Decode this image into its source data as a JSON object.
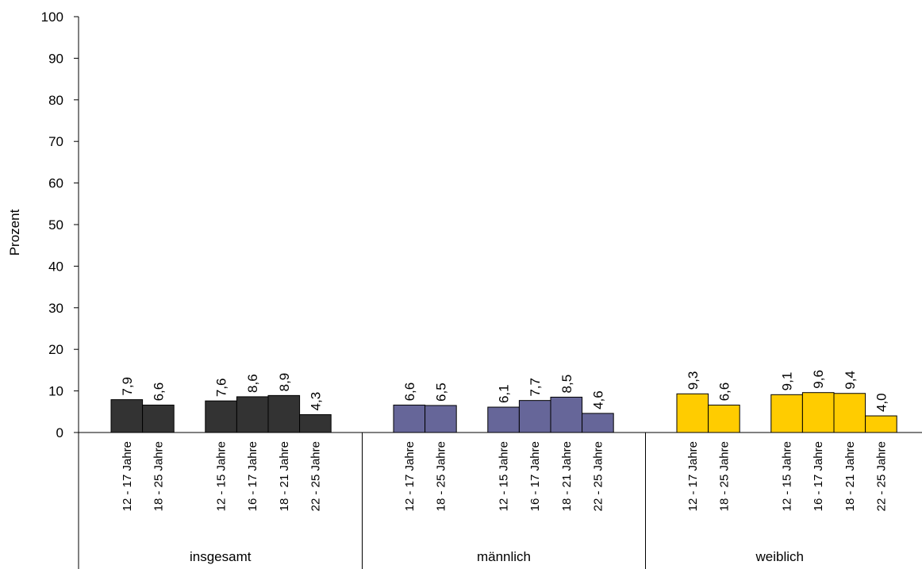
{
  "chart_data": {
    "type": "bar",
    "ylabel": "Prozent",
    "ylim": [
      0,
      100
    ],
    "yticks": [
      "0",
      "10",
      "20",
      "30",
      "40",
      "50",
      "60",
      "70",
      "80",
      "90",
      "100"
    ],
    "grid": false,
    "legend": "none",
    "groups": [
      {
        "label": "insgesamt",
        "color": "#333333",
        "bars": [
          {
            "category": "12 - 17 Jahre",
            "value": 7.9,
            "label": "7,9"
          },
          {
            "category": "18 - 25 Jahre",
            "value": 6.6,
            "label": "6,6"
          },
          {
            "category": "12 - 15 Jahre",
            "value": 7.6,
            "label": "7,6"
          },
          {
            "category": "16 - 17 Jahre",
            "value": 8.6,
            "label": "8,6"
          },
          {
            "category": "18 - 21 Jahre",
            "value": 8.9,
            "label": "8,9"
          },
          {
            "category": "22 - 25 Jahre",
            "value": 4.3,
            "label": "4,3"
          }
        ]
      },
      {
        "label": "männlich",
        "color": "#666699",
        "bars": [
          {
            "category": "12 - 17 Jahre",
            "value": 6.6,
            "label": "6,6"
          },
          {
            "category": "18 - 25 Jahre",
            "value": 6.5,
            "label": "6,5"
          },
          {
            "category": "12 - 15 Jahre",
            "value": 6.1,
            "label": "6,1"
          },
          {
            "category": "16 - 17 Jahre",
            "value": 7.7,
            "label": "7,7"
          },
          {
            "category": "18 - 21 Jahre",
            "value": 8.5,
            "label": "8,5"
          },
          {
            "category": "22 - 25 Jahre",
            "value": 4.6,
            "label": "4,6"
          }
        ]
      },
      {
        "label": "weiblich",
        "color": "#FFCC00",
        "bars": [
          {
            "category": "12 - 17 Jahre",
            "value": 9.3,
            "label": "9,3"
          },
          {
            "category": "18 - 25 Jahre",
            "value": 6.6,
            "label": "6,6"
          },
          {
            "category": "12 - 15 Jahre",
            "value": 9.1,
            "label": "9,1"
          },
          {
            "category": "16 - 17 Jahre",
            "value": 9.6,
            "label": "9,6"
          },
          {
            "category": "18 - 21 Jahre",
            "value": 9.4,
            "label": "9,4"
          },
          {
            "category": "22 - 25 Jahre",
            "value": 4.0,
            "label": "4,0"
          }
        ]
      }
    ]
  }
}
